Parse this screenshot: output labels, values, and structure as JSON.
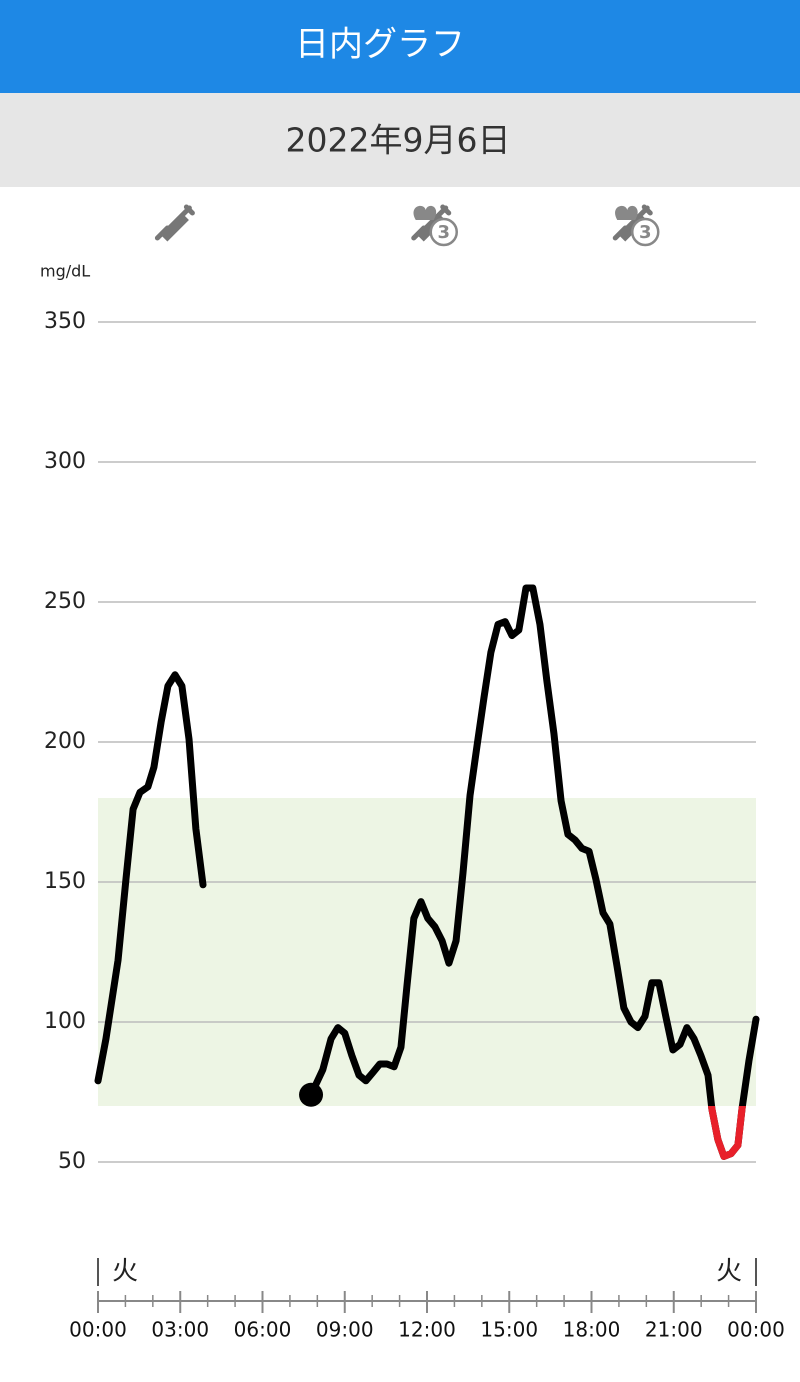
{
  "header": {
    "title": "日内グラフ",
    "date": "2022年9月6日"
  },
  "chart_data": {
    "type": "line",
    "y_label": "mg/dL",
    "x": [
      0,
      0.29,
      0.73,
      1.02,
      1.28,
      1.53,
      1.82,
      2.04,
      2.3,
      2.55,
      2.81,
      3.06,
      3.32,
      3.57,
      3.83,
      5.8,
      7.77,
      8.2,
      8.5,
      8.75,
      9.0,
      9.26,
      9.52,
      9.77,
      10.03,
      10.28,
      10.54,
      10.8,
      11.05,
      11.27,
      11.52,
      11.78,
      12.03,
      12.29,
      12.55,
      12.8,
      13.06,
      13.31,
      13.57,
      13.83,
      14.08,
      14.33,
      14.59,
      14.85,
      15.1,
      15.35,
      15.61,
      15.86,
      16.12,
      16.37,
      16.63,
      16.89,
      17.14,
      17.4,
      17.65,
      17.91,
      18.16,
      18.42,
      18.67,
      18.93,
      19.18,
      19.44,
      19.69,
      19.95,
      20.2,
      20.46,
      20.71,
      20.97,
      21.23,
      21.48,
      21.74,
      21.99,
      22.25,
      22.39,
      22.61,
      22.83,
      23.09,
      23.34,
      23.49,
      23.74,
      24.0
    ],
    "series": [
      {
        "color": "#000000",
        "values": [
          79,
          94,
          122,
          151,
          176,
          182,
          184,
          191,
          207,
          220,
          224,
          220,
          201,
          169,
          149,
          null,
          74,
          83,
          94,
          98,
          96,
          88,
          81,
          79,
          82,
          85,
          85,
          84,
          91,
          113,
          137,
          143,
          137,
          134,
          129,
          121,
          129,
          153,
          181,
          199,
          216,
          232,
          242,
          243,
          238,
          240,
          255,
          255,
          242,
          222,
          203,
          179,
          167,
          165,
          162,
          161,
          151,
          139,
          135,
          120,
          105,
          100,
          98,
          102,
          114,
          114,
          102,
          90,
          92,
          98,
          94,
          88,
          81,
          69,
          58,
          52,
          53,
          56,
          69,
          86,
          101
        ]
      }
    ],
    "low_color": "#e8202a",
    "target_range": [
      70,
      180
    ],
    "target_color": "#edf5e4",
    "xlim": [
      0,
      24
    ],
    "xticks": [
      {
        "value": 0,
        "label": "00:00"
      },
      {
        "value": 3,
        "label": "03:00"
      },
      {
        "value": 6,
        "label": "06:00"
      },
      {
        "value": 9,
        "label": "09:00"
      },
      {
        "value": 12,
        "label": "12:00"
      },
      {
        "value": 15,
        "label": "15:00"
      },
      {
        "value": 18,
        "label": "18:00"
      },
      {
        "value": 21,
        "label": "21:00"
      },
      {
        "value": 24,
        "label": "00:00"
      }
    ],
    "ylim": [
      50,
      350
    ],
    "yticks": [
      50,
      100,
      150,
      200,
      250,
      300,
      350
    ],
    "grid": true,
    "day_labels": [
      "火",
      "火"
    ],
    "events": [
      {
        "x": 2.75,
        "type": "insulin"
      },
      {
        "x": 12.1,
        "type": "meal-insulin",
        "label": "3"
      },
      {
        "x": 19.45,
        "type": "meal-insulin",
        "label": "3"
      }
    ]
  }
}
